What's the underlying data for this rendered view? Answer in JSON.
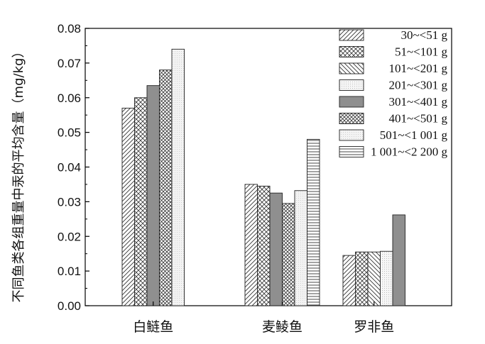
{
  "chart_data": {
    "type": "bar",
    "title": "",
    "xlabel": "",
    "ylabel": "不同鱼类各组重量中汞的平均含量（mg/kg）",
    "ylim": [
      0,
      0.08
    ],
    "yticks": [
      "0.00",
      "0.01",
      "0.02",
      "0.03",
      "0.04",
      "0.05",
      "0.06",
      "0.07",
      "0.08"
    ],
    "categories": [
      "白鲢鱼",
      "麦鲮鱼",
      "罗非鱼"
    ],
    "legend_position": "top-right",
    "series": [
      {
        "name": "30~<51 g",
        "pattern": "diag-up",
        "values": [
          0.057,
          0.035,
          0.0145
        ]
      },
      {
        "name": "51~<101 g",
        "pattern": "crosshatch",
        "values": [
          0.06,
          0.0345,
          0.0155
        ]
      },
      {
        "name": "101~<201 g",
        "pattern": "diag-down",
        "values": [
          null,
          null,
          0.0155
        ]
      },
      {
        "name": "201~<301 g",
        "pattern": "dots",
        "values": [
          null,
          null,
          0.0157
        ]
      },
      {
        "name": "301~<401 g",
        "pattern": "solid-gray",
        "values": [
          0.0635,
          0.0325,
          0.0262
        ]
      },
      {
        "name": "401~<501 g",
        "pattern": "crosshatch-small",
        "values": [
          0.068,
          0.0295,
          null
        ]
      },
      {
        "name": "501~<1 001 g",
        "pattern": "light-dots",
        "values": [
          0.074,
          0.0332,
          null
        ]
      },
      {
        "name": "1 001~<2 200 g",
        "pattern": "horizontal",
        "values": [
          null,
          0.048,
          null
        ]
      }
    ]
  }
}
